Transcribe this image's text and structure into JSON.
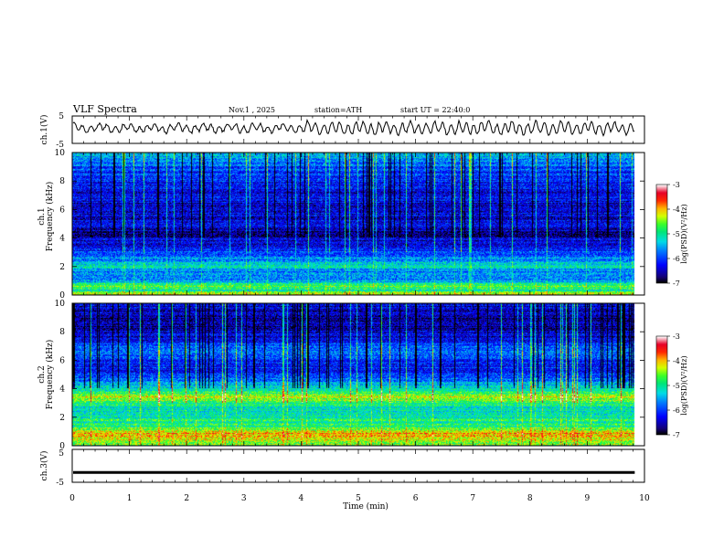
{
  "header": {
    "title": "VLF Spectra",
    "date": "Nov.1 , 2025",
    "station": "station=ATH",
    "start": "start UT = 22:40:0"
  },
  "chart_data": {
    "type": "heatmap",
    "xlabel": "Time (min)",
    "xlim": [
      0,
      10
    ],
    "xticks": [
      "0",
      "1",
      "2",
      "3",
      "4",
      "5",
      "6",
      "7",
      "8",
      "9",
      "10"
    ],
    "data_end_min": 9.83,
    "panels": [
      {
        "id": "ch1-voltage",
        "type": "line",
        "ylabel": "ch.1(V)",
        "ylim": [
          -5,
          5
        ],
        "yticks": [
          "5",
          "-5"
        ],
        "description_series": "oscillating waveform around 0 V, roughly ±2 V"
      },
      {
        "id": "ch1-spectrogram",
        "type": "heatmap",
        "ylabel": "ch.1 Frequency (kHz)",
        "ylim": [
          0,
          10
        ],
        "yticks": [
          "0",
          "2",
          "4",
          "6",
          "8",
          "10"
        ],
        "colorbar": {
          "label": "log(PSD)(V²/Hz)",
          "ticks": [
            "-3",
            "-4",
            "-5",
            "-6",
            "-7"
          ],
          "range": [
            -7,
            -3
          ]
        },
        "bands_khz_to_log_psd": [
          [
            0.0,
            -4.2
          ],
          [
            0.3,
            -5.0
          ],
          [
            0.6,
            -4.6
          ],
          [
            1.0,
            -5.6
          ],
          [
            1.6,
            -5.8
          ],
          [
            2.0,
            -5.0
          ],
          [
            2.4,
            -5.6
          ],
          [
            3.0,
            -6.0
          ],
          [
            3.6,
            -6.3
          ],
          [
            4.3,
            -6.7
          ],
          [
            5.0,
            -6.2
          ],
          [
            5.5,
            -6.4
          ],
          [
            6.0,
            -6.3
          ],
          [
            7.0,
            -6.4
          ],
          [
            8.0,
            -6.2
          ],
          [
            9.0,
            -5.9
          ],
          [
            9.7,
            -5.5
          ],
          [
            10.0,
            -5.4
          ]
        ]
      },
      {
        "id": "ch2-spectrogram",
        "type": "heatmap",
        "ylabel": "ch.2 Frequency (kHz)",
        "ylim": [
          0,
          10
        ],
        "yticks": [
          "0",
          "2",
          "4",
          "6",
          "8",
          "10"
        ],
        "colorbar": {
          "label": "log(PSD)(V²/Hz)",
          "ticks": [
            "-3",
            "-4",
            "-5",
            "-6",
            "-7"
          ],
          "range": [
            -7,
            -3
          ]
        },
        "bands_khz_to_log_psd": [
          [
            0.0,
            -4.6
          ],
          [
            0.4,
            -4.3
          ],
          [
            0.8,
            -3.9
          ],
          [
            1.2,
            -4.7
          ],
          [
            1.8,
            -5.0
          ],
          [
            2.5,
            -5.2
          ],
          [
            3.0,
            -4.8
          ],
          [
            3.4,
            -4.2
          ],
          [
            3.7,
            -4.9
          ],
          [
            4.2,
            -5.3
          ],
          [
            4.8,
            -5.9
          ],
          [
            5.5,
            -6.2
          ],
          [
            6.0,
            -6.1
          ],
          [
            6.8,
            -5.7
          ],
          [
            7.5,
            -6.3
          ],
          [
            8.5,
            -6.6
          ],
          [
            10.0,
            -6.4
          ]
        ]
      },
      {
        "id": "ch3-voltage",
        "type": "line",
        "ylabel": "ch.3(V)",
        "ylim": [
          -5,
          5
        ],
        "yticks": [
          "5",
          "-5"
        ],
        "constant_value_v": -2
      }
    ]
  }
}
